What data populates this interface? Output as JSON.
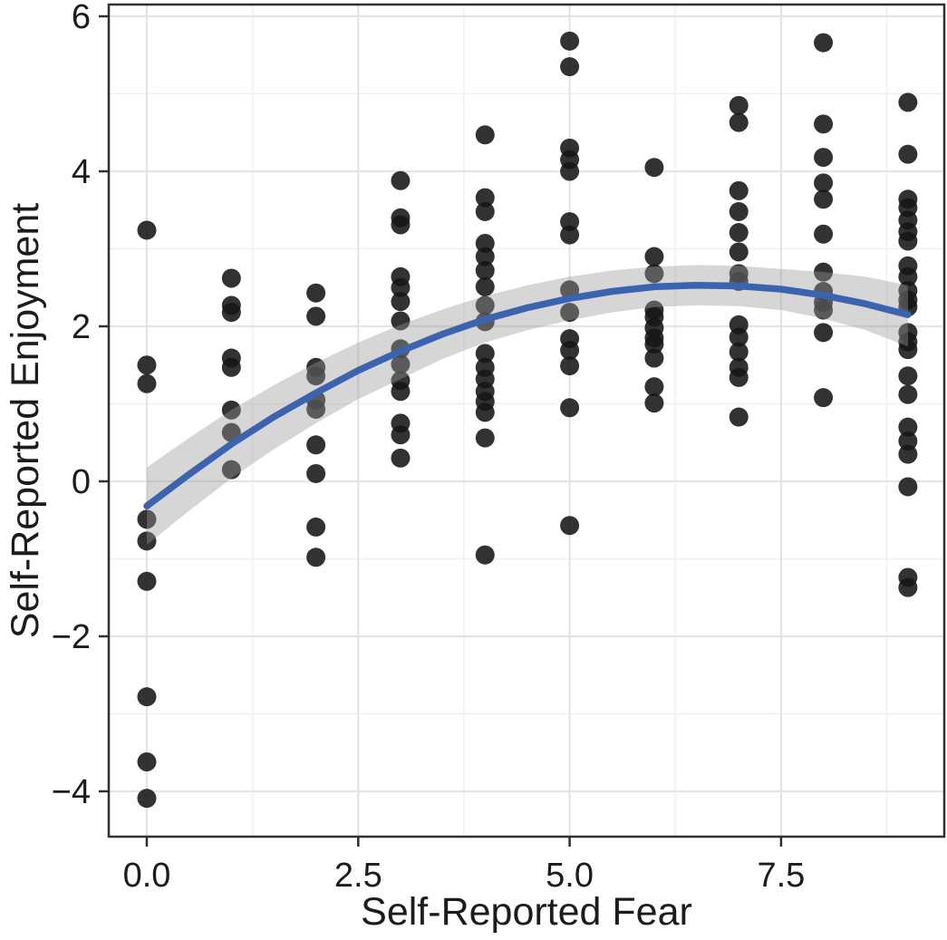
{
  "chart_data": {
    "type": "scatter",
    "title": "",
    "xlabel": "Self-Reported Fear",
    "ylabel": "Self-Reported Enjoyment",
    "xlim": [
      -0.45,
      9.43
    ],
    "ylim": [
      -4.585,
      6.152
    ],
    "grid": true,
    "legend_position": "none",
    "x_ticks": [
      0,
      2.5,
      5,
      7.5
    ],
    "x_tick_labels": [
      "0.0",
      "2.5",
      "5.0",
      "7.5"
    ],
    "y_ticks": [
      -4,
      -2,
      0,
      2,
      4,
      6
    ],
    "y_tick_labels": [
      "−4",
      "−2",
      "0",
      "2",
      "4",
      "6"
    ],
    "x_minor_gridlines": [
      1.25,
      3.75,
      6.25,
      8.75
    ],
    "y_minor_gridlines": [
      -3,
      -1,
      1,
      3,
      5
    ],
    "colors": {
      "point": "#161616",
      "point_opacity": 0.88,
      "smooth_line": "#3b63ae",
      "ribbon": "#999999",
      "ribbon_opacity": 0.4,
      "grid_major": "#e4e4e4",
      "grid_minor": "#f0f0f0",
      "panel_border": "#303030",
      "text": "#1c1c1c"
    },
    "point_radius": 10.5,
    "points": [
      [
        0,
        3.24
      ],
      [
        0,
        1.5
      ],
      [
        0,
        1.26
      ],
      [
        0,
        -0.49
      ],
      [
        0,
        -0.77
      ],
      [
        0,
        -1.29
      ],
      [
        0,
        -2.78
      ],
      [
        0,
        -3.62
      ],
      [
        0,
        -4.09
      ],
      [
        1,
        2.62
      ],
      [
        1,
        2.27
      ],
      [
        1,
        2.18
      ],
      [
        1,
        1.59
      ],
      [
        1,
        1.47
      ],
      [
        1,
        0.92
      ],
      [
        1,
        0.63
      ],
      [
        1,
        0.15
      ],
      [
        2,
        2.43
      ],
      [
        2,
        2.13
      ],
      [
        2,
        1.47
      ],
      [
        2,
        1.36
      ],
      [
        2,
        1.05
      ],
      [
        2,
        0.93
      ],
      [
        2,
        0.47
      ],
      [
        2,
        0.1
      ],
      [
        2,
        -0.59
      ],
      [
        2,
        -0.98
      ],
      [
        3,
        3.88
      ],
      [
        3,
        3.4
      ],
      [
        3,
        3.31
      ],
      [
        3,
        2.64
      ],
      [
        3,
        2.5
      ],
      [
        3,
        2.32
      ],
      [
        3,
        2.07
      ],
      [
        3,
        1.71
      ],
      [
        3,
        1.51
      ],
      [
        3,
        1.3
      ],
      [
        3,
        1.16
      ],
      [
        3,
        0.75
      ],
      [
        3,
        0.6
      ],
      [
        3,
        0.3
      ],
      [
        4,
        4.47
      ],
      [
        4,
        3.66
      ],
      [
        4,
        3.48
      ],
      [
        4,
        3.07
      ],
      [
        4,
        2.9
      ],
      [
        4,
        2.72
      ],
      [
        4,
        2.51
      ],
      [
        4,
        2.27
      ],
      [
        4,
        2.06
      ],
      [
        4,
        1.65
      ],
      [
        4,
        1.47
      ],
      [
        4,
        1.32
      ],
      [
        4,
        1.16
      ],
      [
        4,
        1.03
      ],
      [
        4,
        0.89
      ],
      [
        4,
        0.56
      ],
      [
        4,
        -0.95
      ],
      [
        5,
        5.68
      ],
      [
        5,
        5.35
      ],
      [
        5,
        4.3
      ],
      [
        5,
        4.15
      ],
      [
        5,
        4.0
      ],
      [
        5,
        3.35
      ],
      [
        5,
        3.18
      ],
      [
        5,
        2.47
      ],
      [
        5,
        2.18
      ],
      [
        5,
        1.84
      ],
      [
        5,
        1.69
      ],
      [
        5,
        1.49
      ],
      [
        5,
        0.95
      ],
      [
        5,
        -0.57
      ],
      [
        6,
        4.05
      ],
      [
        6,
        2.9
      ],
      [
        6,
        2.68
      ],
      [
        6,
        2.21
      ],
      [
        6,
        2.12
      ],
      [
        6,
        1.98
      ],
      [
        6,
        1.85
      ],
      [
        6,
        1.77
      ],
      [
        6,
        1.59
      ],
      [
        6,
        1.22
      ],
      [
        6,
        1.01
      ],
      [
        7,
        4.85
      ],
      [
        7,
        4.63
      ],
      [
        7,
        3.75
      ],
      [
        7,
        3.48
      ],
      [
        7,
        3.21
      ],
      [
        7,
        2.96
      ],
      [
        7,
        2.68
      ],
      [
        7,
        2.58
      ],
      [
        7,
        2.02
      ],
      [
        7,
        1.86
      ],
      [
        7,
        1.67
      ],
      [
        7,
        1.47
      ],
      [
        7,
        1.34
      ],
      [
        7,
        0.83
      ],
      [
        8,
        5.66
      ],
      [
        8,
        4.61
      ],
      [
        8,
        4.18
      ],
      [
        8,
        3.85
      ],
      [
        8,
        3.64
      ],
      [
        8,
        3.19
      ],
      [
        8,
        2.7
      ],
      [
        8,
        2.45
      ],
      [
        8,
        2.31
      ],
      [
        8,
        2.21
      ],
      [
        8,
        1.92
      ],
      [
        8,
        1.08
      ],
      [
        9,
        4.89
      ],
      [
        9,
        4.22
      ],
      [
        9,
        3.64
      ],
      [
        9,
        3.53
      ],
      [
        9,
        3.37
      ],
      [
        9,
        3.22
      ],
      [
        9,
        3.1
      ],
      [
        9,
        2.78
      ],
      [
        9,
        2.64
      ],
      [
        9,
        2.46
      ],
      [
        9,
        2.34
      ],
      [
        9,
        2.25
      ],
      [
        9,
        1.92
      ],
      [
        9,
        1.8
      ],
      [
        9,
        1.7
      ],
      [
        9,
        1.36
      ],
      [
        9,
        1.12
      ],
      [
        9,
        0.7
      ],
      [
        9,
        0.52
      ],
      [
        9,
        0.35
      ],
      [
        9,
        -0.07
      ],
      [
        9,
        -1.24
      ],
      [
        9,
        -1.37
      ]
    ],
    "smooth_line": {
      "x": [
        0,
        0.5,
        1,
        1.5,
        2,
        2.5,
        3,
        3.5,
        4,
        4.5,
        5,
        5.5,
        6,
        6.5,
        7,
        7.5,
        8,
        8.5,
        9
      ],
      "y": [
        -0.32,
        0.09,
        0.48,
        0.83,
        1.14,
        1.43,
        1.68,
        1.9,
        2.09,
        2.24,
        2.36,
        2.45,
        2.51,
        2.53,
        2.52,
        2.48,
        2.4,
        2.29,
        2.15
      ]
    },
    "ribbon": {
      "x": [
        0,
        0.5,
        1,
        1.5,
        2,
        2.5,
        3,
        3.5,
        4,
        4.5,
        5,
        5.5,
        6,
        6.5,
        7,
        7.5,
        8,
        8.5,
        9
      ],
      "upper": [
        0.18,
        0.56,
        0.92,
        1.24,
        1.53,
        1.79,
        2.02,
        2.22,
        2.39,
        2.53,
        2.64,
        2.72,
        2.77,
        2.79,
        2.78,
        2.74,
        2.7,
        2.64,
        2.53
      ],
      "lower": [
        -0.82,
        -0.38,
        0.04,
        0.41,
        0.75,
        1.06,
        1.32,
        1.58,
        1.79,
        1.95,
        2.08,
        2.18,
        2.25,
        2.27,
        2.26,
        2.21,
        2.1,
        1.95,
        1.74
      ]
    }
  }
}
